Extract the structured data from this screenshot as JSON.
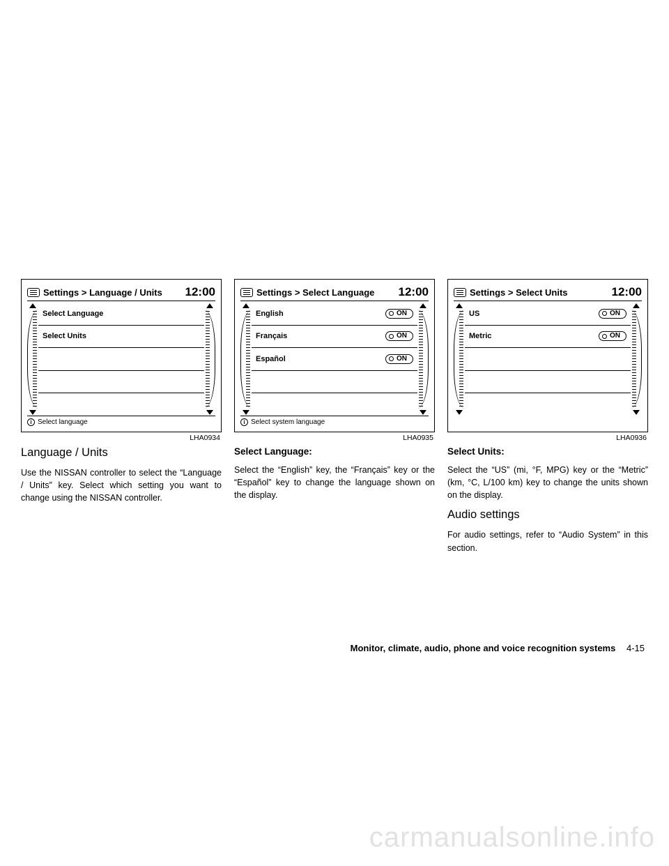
{
  "clock": "12:00",
  "figures": {
    "a": {
      "id": "LHA0934",
      "breadcrumb": "Settings  >  Language / Units",
      "rows": [
        {
          "label": "Select Language",
          "toggle": null
        },
        {
          "label": "Select Units",
          "toggle": null
        },
        {
          "label": "",
          "toggle": null
        },
        {
          "label": "",
          "toggle": null
        },
        {
          "label": "",
          "toggle": null
        }
      ],
      "footer": "Select language"
    },
    "b": {
      "id": "LHA0935",
      "breadcrumb": "Settings  >  Select Language",
      "rows": [
        {
          "label": "English",
          "toggle": "ON"
        },
        {
          "label": "Français",
          "toggle": "ON"
        },
        {
          "label": "Español",
          "toggle": "ON"
        },
        {
          "label": "",
          "toggle": null
        },
        {
          "label": "",
          "toggle": null
        }
      ],
      "footer": "Select system language"
    },
    "c": {
      "id": "LHA0936",
      "breadcrumb": "Settings  >  Select Units",
      "rows": [
        {
          "label": "US",
          "toggle": "ON"
        },
        {
          "label": "Metric",
          "toggle": "ON"
        },
        {
          "label": "",
          "toggle": null
        },
        {
          "label": "",
          "toggle": null
        },
        {
          "label": "",
          "toggle": null
        }
      ],
      "footer": ""
    }
  },
  "text": {
    "col1": {
      "heading": "Language / Units",
      "p1": "Use the NISSAN controller to select the “Lan­guage / Units” key. Select which setting you want to change using the NISSAN controller."
    },
    "col2": {
      "heading": "Select Language:",
      "p1": "Select the “English” key, the “Français” key or the “Español” key to change the language shown on the display."
    },
    "col3": {
      "heading1": "Select Units:",
      "p1": "Select the “US” (mi, °F, MPG) key or the “Metric” (km, °C, L/100 km) key to change the units shown on the display.",
      "heading2": "Audio settings",
      "p2": "For audio settings, refer to “Audio System” in this section."
    }
  },
  "footer": {
    "section": "Monitor, climate, audio, phone and voice recognition systems",
    "page": "4-15"
  },
  "watermark": "carmanualsonline.info"
}
